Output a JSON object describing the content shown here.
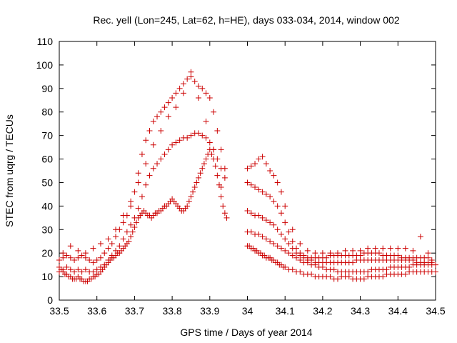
{
  "chart_data": {
    "type": "scatter",
    "title": "Rec. yell (Lon=245, Lat=62, h=HE), days 033-034, 2014, window 002",
    "xlabel": "GPS time / Days of year 2014",
    "ylabel": "STEC from uqrg / TECUs",
    "xlim": [
      33.5,
      34.5
    ],
    "ylim": [
      0,
      110
    ],
    "xticks": [
      "33.5",
      "33.6",
      "33.7",
      "33.8",
      "33.9",
      "34",
      "34.1",
      "34.2",
      "34.3",
      "34.4",
      "34.5"
    ],
    "yticks": [
      "0",
      "10",
      "20",
      "30",
      "40",
      "50",
      "60",
      "70",
      "80",
      "90",
      "100",
      "110"
    ],
    "grid": false,
    "legend": "none",
    "marker": "plus",
    "series_color": "#cc0000",
    "series": [
      {
        "x": [
          33.5,
          33.505,
          33.51,
          33.515,
          33.52,
          33.525,
          33.53,
          33.535,
          33.54,
          33.545,
          33.55,
          33.555,
          33.56,
          33.565,
          33.57,
          33.575,
          33.58,
          33.585,
          33.59,
          33.595,
          33.6,
          33.605,
          33.61,
          33.615,
          33.62,
          33.625,
          33.63,
          33.635,
          33.64,
          33.645,
          33.65,
          33.655,
          33.66,
          33.665,
          33.67,
          33.675,
          33.68,
          33.685,
          33.69,
          33.695,
          33.7,
          33.705,
          33.71,
          33.715,
          33.72,
          33.725,
          33.73,
          33.735,
          33.74,
          33.745,
          33.75,
          33.755,
          33.76,
          33.765,
          33.77,
          33.775,
          33.78,
          33.785,
          33.79,
          33.795,
          33.8,
          33.805,
          33.81,
          33.815,
          33.82,
          33.825,
          33.83,
          33.835,
          33.84,
          33.845,
          33.85,
          33.855,
          33.86,
          33.865,
          33.87,
          33.875,
          33.88,
          33.885,
          33.89,
          33.895,
          33.9,
          33.905,
          33.91,
          33.915,
          33.92,
          33.925,
          33.93,
          33.935,
          33.94,
          33.945
        ],
        "y": [
          12,
          13,
          12,
          11,
          11,
          10,
          10,
          9,
          9,
          9,
          10,
          9,
          9,
          8,
          8,
          8,
          9,
          9,
          10,
          10,
          11,
          11,
          12,
          13,
          14,
          15,
          16,
          17,
          18,
          18,
          19,
          20,
          20,
          21,
          22,
          23,
          24,
          25,
          27,
          29,
          31,
          33,
          35,
          36,
          37,
          38,
          37,
          36,
          36,
          35,
          36,
          37,
          37,
          38,
          38,
          39,
          40,
          40,
          41,
          42,
          43,
          42,
          41,
          40,
          39,
          38,
          38,
          39,
          40,
          42,
          44,
          46,
          48,
          50,
          52,
          54,
          56,
          58,
          60,
          62,
          64,
          62,
          60,
          57,
          53,
          49,
          44,
          40,
          37,
          35
        ]
      },
      {
        "x": [
          33.5,
          33.51,
          33.52,
          33.53,
          33.54,
          33.55,
          33.56,
          33.57,
          33.58,
          33.59,
          33.6,
          33.61,
          33.62,
          33.63,
          33.64,
          33.65,
          33.66,
          33.67,
          33.68,
          33.69,
          33.7,
          33.71,
          33.72,
          33.73,
          33.74,
          33.75,
          33.76,
          33.77,
          33.78,
          33.79,
          33.8,
          33.81,
          33.82,
          33.83,
          33.84,
          33.85,
          33.86,
          33.87,
          33.88,
          33.89,
          33.9,
          33.91,
          33.92,
          33.93,
          33.94
        ],
        "y": [
          14,
          13,
          14,
          13,
          12,
          13,
          12,
          13,
          12,
          12,
          13,
          14,
          15,
          17,
          19,
          21,
          23,
          26,
          29,
          32,
          35,
          39,
          44,
          49,
          53,
          56,
          58,
          60,
          62,
          64,
          66,
          67,
          68,
          69,
          69,
          70,
          71,
          71,
          70,
          69,
          67,
          64,
          60,
          56,
          52
        ]
      },
      {
        "x": [
          33.5,
          33.51,
          33.52,
          33.53,
          33.54,
          33.55,
          33.56,
          33.57,
          33.58,
          33.59,
          33.6,
          33.61,
          33.62,
          33.63,
          33.64,
          33.65,
          33.66,
          33.67,
          33.68,
          33.69,
          33.7,
          33.71,
          33.72,
          33.73,
          33.74,
          33.75,
          33.76,
          33.77,
          33.78,
          33.79,
          33.8,
          33.81,
          33.82,
          33.83,
          33.84,
          33.85,
          33.86,
          33.87,
          33.88,
          33.89,
          33.9,
          33.91,
          33.92,
          33.93,
          33.94
        ],
        "y": [
          17,
          18,
          19,
          18,
          17,
          18,
          19,
          18,
          17,
          16,
          17,
          18,
          20,
          22,
          24,
          27,
          30,
          33,
          36,
          40,
          46,
          54,
          62,
          68,
          72,
          76,
          78,
          80,
          82,
          84,
          86,
          88,
          90,
          92,
          94,
          95,
          93,
          91,
          90,
          88,
          86,
          80,
          72,
          64,
          56
        ]
      },
      {
        "x": [
          33.51,
          33.53,
          33.55,
          33.57,
          33.59,
          33.61,
          33.63,
          33.65,
          33.67,
          33.69,
          33.71,
          33.73,
          33.75,
          33.77,
          33.79,
          33.81,
          33.83,
          33.85,
          33.87,
          33.89,
          33.91,
          33.93
        ],
        "y": [
          20,
          23,
          21,
          20,
          22,
          24,
          26,
          30,
          36,
          42,
          50,
          58,
          66,
          72,
          78,
          82,
          88,
          97,
          86,
          76,
          64,
          48
        ]
      },
      {
        "x": [
          34.0,
          34.005,
          34.01,
          34.015,
          34.02,
          34.025,
          34.03,
          34.035,
          34.04,
          34.045,
          34.05,
          34.055,
          34.06,
          34.065,
          34.07,
          34.075,
          34.08,
          34.085,
          34.09,
          34.095,
          34.1,
          34.11,
          34.12,
          34.13,
          34.14,
          34.15,
          34.16,
          34.17,
          34.18,
          34.19,
          34.2,
          34.21,
          34.22,
          34.23,
          34.24,
          34.25,
          34.26,
          34.27,
          34.28,
          34.29,
          34.3,
          34.31,
          34.32,
          34.33,
          34.34,
          34.35,
          34.36,
          34.37,
          34.38,
          34.39,
          34.4,
          34.41,
          34.42,
          34.43,
          34.44,
          34.45,
          34.46,
          34.47,
          34.48,
          34.49,
          34.5
        ],
        "y": [
          23,
          23,
          22,
          22,
          21,
          21,
          20,
          20,
          19,
          19,
          18,
          18,
          18,
          17,
          17,
          16,
          16,
          15,
          15,
          14,
          14,
          13,
          13,
          12,
          12,
          11,
          11,
          11,
          10,
          10,
          10,
          10,
          10,
          9,
          9,
          10,
          10,
          10,
          9,
          9,
          9,
          9,
          10,
          10,
          10,
          10,
          10,
          11,
          11,
          11,
          11,
          11,
          11,
          12,
          12,
          12,
          12,
          12,
          12,
          12,
          12
        ]
      },
      {
        "x": [
          34.0,
          34.01,
          34.02,
          34.03,
          34.04,
          34.05,
          34.06,
          34.07,
          34.08,
          34.09,
          34.1,
          34.11,
          34.12,
          34.13,
          34.14,
          34.15,
          34.16,
          34.17,
          34.18,
          34.19,
          34.2,
          34.21,
          34.22,
          34.23,
          34.24,
          34.25,
          34.26,
          34.27,
          34.28,
          34.29,
          34.3,
          34.31,
          34.32,
          34.33,
          34.34,
          34.35,
          34.36,
          34.37,
          34.38,
          34.39,
          34.4,
          34.41,
          34.42,
          34.43,
          34.44,
          34.45,
          34.46,
          34.47,
          34.48,
          34.49,
          34.5
        ],
        "y": [
          29,
          29,
          28,
          28,
          27,
          26,
          25,
          24,
          23,
          22,
          21,
          20,
          19,
          18,
          17,
          16,
          16,
          15,
          15,
          14,
          14,
          13,
          13,
          13,
          12,
          12,
          12,
          12,
          12,
          12,
          12,
          12,
          12,
          13,
          13,
          13,
          13,
          13,
          14,
          14,
          14,
          14,
          14,
          14,
          15,
          15,
          15,
          15,
          15,
          15,
          15
        ]
      },
      {
        "x": [
          34.0,
          34.01,
          34.02,
          34.03,
          34.04,
          34.05,
          34.06,
          34.07,
          34.08,
          34.09,
          34.1,
          34.11,
          34.12,
          34.13,
          34.14,
          34.15,
          34.16,
          34.17,
          34.18,
          34.19,
          34.2,
          34.21,
          34.22,
          34.23,
          34.24,
          34.25,
          34.26,
          34.27,
          34.28,
          34.29,
          34.3,
          34.31,
          34.32,
          34.33,
          34.34,
          34.35,
          34.36,
          34.37,
          34.38,
          34.39,
          34.4,
          34.41,
          34.42,
          34.43,
          34.44,
          34.45,
          34.46,
          34.47,
          34.48,
          34.49
        ],
        "y": [
          38,
          37,
          36,
          36,
          35,
          34,
          33,
          32,
          30,
          28,
          26,
          24,
          22,
          20,
          19,
          18,
          17,
          17,
          16,
          16,
          16,
          16,
          16,
          16,
          16,
          16,
          16,
          16,
          16,
          17,
          17,
          17,
          17,
          17,
          17,
          17,
          17,
          17,
          17,
          17,
          17,
          17,
          17,
          17,
          17,
          16,
          16,
          16,
          16,
          16
        ]
      },
      {
        "x": [
          34.0,
          34.01,
          34.02,
          34.03,
          34.04,
          34.05,
          34.06,
          34.07,
          34.08,
          34.09,
          34.1,
          34.11,
          34.12,
          34.13,
          34.14,
          34.15,
          34.16,
          34.17,
          34.18,
          34.19,
          34.2,
          34.21,
          34.22,
          34.23,
          34.24,
          34.25,
          34.26,
          34.27,
          34.28,
          34.29,
          34.3,
          34.31,
          34.32,
          34.33,
          34.34,
          34.35,
          34.36,
          34.37,
          34.38,
          34.39,
          34.4,
          34.41,
          34.42,
          34.43,
          34.44,
          34.45,
          34.46,
          34.47,
          34.48,
          34.49
        ],
        "y": [
          50,
          49,
          48,
          47,
          46,
          45,
          44,
          42,
          40,
          37,
          33,
          29,
          25,
          22,
          20,
          19,
          18,
          18,
          18,
          18,
          18,
          18,
          19,
          19,
          19,
          19,
          19,
          19,
          19,
          19,
          19,
          20,
          20,
          20,
          20,
          20,
          19,
          19,
          19,
          19,
          19,
          18,
          18,
          18,
          18,
          18,
          18,
          18,
          18,
          17
        ]
      },
      {
        "x": [
          34.0,
          34.01,
          34.02,
          34.03,
          34.04,
          34.05,
          34.06,
          34.07,
          34.08,
          34.09,
          34.1,
          34.12,
          34.14,
          34.16,
          34.18,
          34.2,
          34.22,
          34.24,
          34.26,
          34.28,
          34.3,
          34.32,
          34.34,
          34.36,
          34.38,
          34.4,
          34.42,
          34.44,
          34.46,
          34.48
        ],
        "y": [
          56,
          57,
          58,
          60,
          61,
          58,
          55,
          53,
          50,
          46,
          40,
          30,
          24,
          21,
          20,
          20,
          20,
          20,
          21,
          21,
          21,
          22,
          22,
          22,
          22,
          22,
          22,
          21,
          27,
          20
        ]
      }
    ]
  }
}
